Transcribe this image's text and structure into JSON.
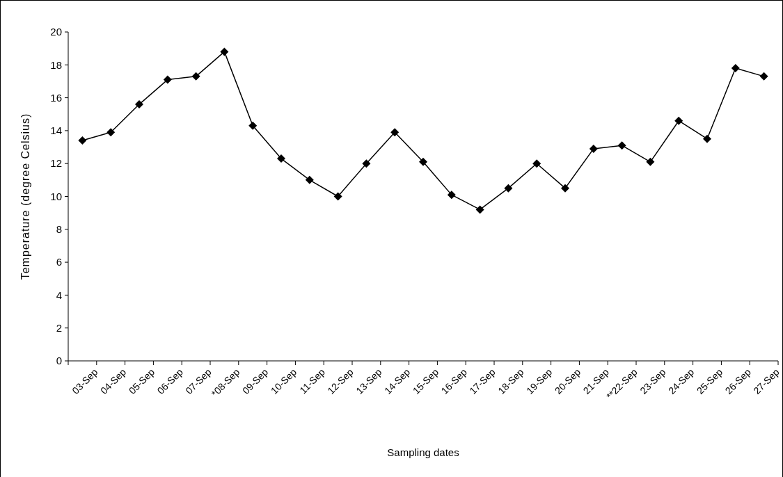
{
  "chart_data": {
    "type": "line",
    "xlabel": "Sampling dates",
    "ylabel": "Temperature (degree Celsius)",
    "categories": [
      "03-Sep",
      "04-Sep",
      "05-Sep",
      "06-Sep",
      "07-Sep",
      "*08-Sep",
      "09-Sep",
      "10-Sep",
      "11-Sep",
      "12-Sep",
      "13-Sep",
      "14-Sep",
      "15-Sep",
      "16-Sep",
      "17-Sep",
      "18-Sep",
      "19-Sep",
      "20-Sep",
      "21-Sep",
      "**22-Sep",
      "23-Sep",
      "24-Sep",
      "25-Sep",
      "26-Sep",
      "27-Sep"
    ],
    "series": [
      {
        "color": "#000000",
        "values": [
          13.4,
          13.9,
          15.6,
          17.1,
          17.3,
          18.8,
          14.3,
          12.3,
          11.0,
          10.0,
          12.0,
          13.9,
          12.1,
          10.1,
          9.2,
          10.5,
          12.0,
          10.5,
          12.9,
          13.1,
          12.1,
          14.6,
          13.5,
          17.8,
          17.3
        ]
      }
    ],
    "ylim": [
      0,
      20
    ],
    "yticks": [
      0,
      2,
      4,
      6,
      8,
      10,
      12,
      14,
      16,
      18,
      20
    ],
    "marker": "diamond",
    "line_style": "solid",
    "grid": false
  }
}
